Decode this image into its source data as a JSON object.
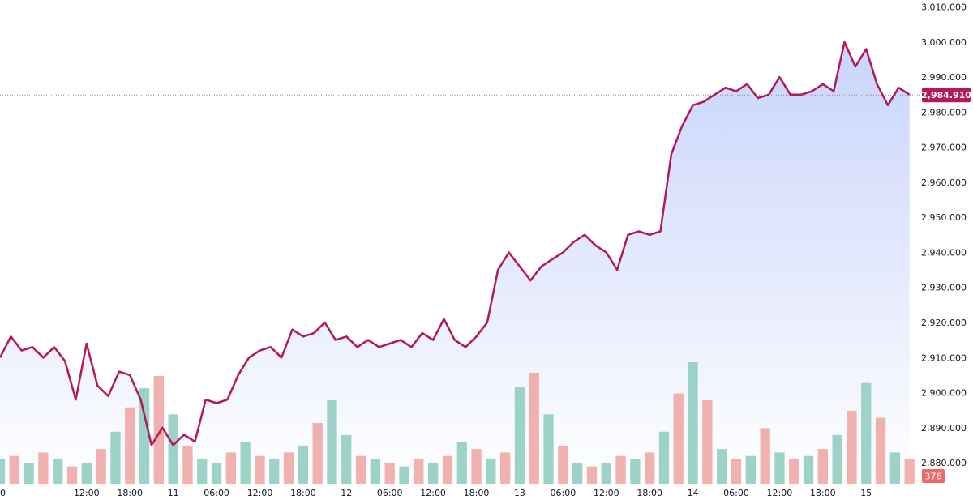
{
  "chart_data": {
    "type": "area",
    "title": "",
    "xlabel": "",
    "ylabel": "",
    "ylim": [
      2874,
      3012
    ],
    "grid": false,
    "colors": {
      "line": "#b2185a",
      "area_top": "#c8d4fb",
      "area_bottom": "#ffffff",
      "volume_up": "#8ccbbd",
      "volume_down": "#eea3a0",
      "last_price_tag": "#b2185a",
      "volume_tag": "#ee6a6a"
    },
    "y_ticks": [
      "3,010.000",
      "3,000.000",
      "2,990.000",
      "2,980.000",
      "2,970.000",
      "2,960.000",
      "2,950.000",
      "2,940.000",
      "2,930.000",
      "2,920.000",
      "2,910.000",
      "2,900.000",
      "2,890.000",
      "2,880.000"
    ],
    "y_tick_values": [
      3010,
      3000,
      2990,
      2980,
      2970,
      2960,
      2950,
      2940,
      2930,
      2920,
      2910,
      2900,
      2890,
      2880
    ],
    "x_ticks": [
      "0",
      "12:00",
      "18:00",
      "11",
      "06:00",
      "12:00",
      "18:00",
      "12",
      "06:00",
      "12:00",
      "18:00",
      "13",
      "06:00",
      "12:00",
      "18:00",
      "14",
      "06:00",
      "12:00",
      "18:00",
      "15"
    ],
    "x_tick_hours": [
      0,
      12,
      18,
      24,
      30,
      36,
      42,
      48,
      54,
      60,
      66,
      72,
      78,
      84,
      90,
      96,
      102,
      108,
      114,
      120
    ],
    "x_range_hours": [
      0,
      126.6
    ],
    "last_price": "2,984.910",
    "last_price_value": 2984.91,
    "volume_label": "376",
    "price_series": {
      "name": "",
      "hours": [
        0,
        1.5,
        3,
        4.5,
        6,
        7.5,
        9,
        10.5,
        12,
        13.5,
        15,
        16.5,
        18,
        19.5,
        21,
        22.5,
        24,
        25.5,
        27,
        28.5,
        30,
        31.5,
        33,
        34.5,
        36,
        37.5,
        39,
        40.5,
        42,
        43.5,
        45,
        46.5,
        48,
        49.5,
        51,
        52.5,
        54,
        55.5,
        57,
        58.5,
        60,
        61.5,
        63,
        64.5,
        66,
        67.5,
        69,
        70.5,
        72,
        73.5,
        75,
        76.5,
        78,
        79.5,
        81,
        82.5,
        84,
        85.5,
        87,
        88.5,
        90,
        91.5,
        93,
        94.5,
        96,
        97.5,
        99,
        100.5,
        102,
        103.5,
        105,
        106.5,
        108,
        109.5,
        111,
        112.5,
        114,
        115.5,
        117,
        118.5,
        120,
        121.5,
        123,
        124.5,
        126
      ],
      "values": [
        2910,
        2916,
        2912,
        2913,
        2910,
        2913,
        2909,
        2898,
        2914,
        2902,
        2899,
        2906,
        2905,
        2898,
        2885,
        2890,
        2885,
        2888,
        2886,
        2898,
        2897,
        2898,
        2905,
        2910,
        2912,
        2913,
        2910,
        2918,
        2916,
        2917,
        2920,
        2915,
        2916,
        2913,
        2915,
        2913,
        2914,
        2915,
        2913,
        2917,
        2915,
        2921,
        2915,
        2913,
        2916,
        2920,
        2935,
        2940,
        2936,
        2932,
        2936,
        2938,
        2940,
        2943,
        2945,
        2942,
        2940,
        2935,
        2945,
        2946,
        2945,
        2946,
        2968,
        2976,
        2982,
        2983,
        2985,
        2987,
        2986,
        2988,
        2984,
        2985,
        2990,
        2985,
        2985,
        2986,
        2988,
        2986,
        3000,
        2993,
        2998,
        2988,
        2982,
        2987,
        2985
      ]
    },
    "volume_series": {
      "name": "",
      "hours": [
        0,
        2,
        4,
        6,
        8,
        10,
        12,
        14,
        16,
        18,
        20,
        22,
        24,
        26,
        28,
        30,
        32,
        34,
        36,
        38,
        40,
        42,
        44,
        46,
        48,
        50,
        52,
        54,
        56,
        58,
        60,
        62,
        64,
        66,
        68,
        70,
        72,
        74,
        76,
        78,
        80,
        82,
        84,
        86,
        88,
        90,
        92,
        94,
        96,
        98,
        100,
        102,
        104,
        106,
        108,
        110,
        112,
        114,
        116,
        118,
        120,
        122,
        124,
        126
      ],
      "values": [
        14,
        16,
        12,
        18,
        14,
        10,
        12,
        20,
        30,
        44,
        55,
        62,
        40,
        22,
        14,
        12,
        18,
        24,
        16,
        14,
        18,
        22,
        35,
        48,
        28,
        16,
        14,
        12,
        10,
        14,
        12,
        16,
        24,
        20,
        14,
        18,
        56,
        64,
        40,
        22,
        12,
        10,
        12,
        16,
        14,
        18,
        30,
        52,
        70,
        48,
        20,
        14,
        16,
        32,
        18,
        14,
        16,
        20,
        28,
        42,
        58,
        38,
        18,
        14
      ],
      "direction": [
        "up",
        "down",
        "up",
        "down",
        "up",
        "down",
        "up",
        "down",
        "up",
        "down",
        "up",
        "down",
        "up",
        "down",
        "up",
        "up",
        "down",
        "up",
        "down",
        "up",
        "down",
        "up",
        "down",
        "up",
        "up",
        "down",
        "up",
        "down",
        "up",
        "down",
        "up",
        "down",
        "up",
        "down",
        "up",
        "down",
        "up",
        "down",
        "up",
        "down",
        "up",
        "down",
        "up",
        "down",
        "up",
        "down",
        "up",
        "down",
        "up",
        "down",
        "up",
        "down",
        "up",
        "down",
        "up",
        "down",
        "up",
        "down",
        "up",
        "down",
        "up",
        "down",
        "up",
        "down"
      ]
    }
  }
}
